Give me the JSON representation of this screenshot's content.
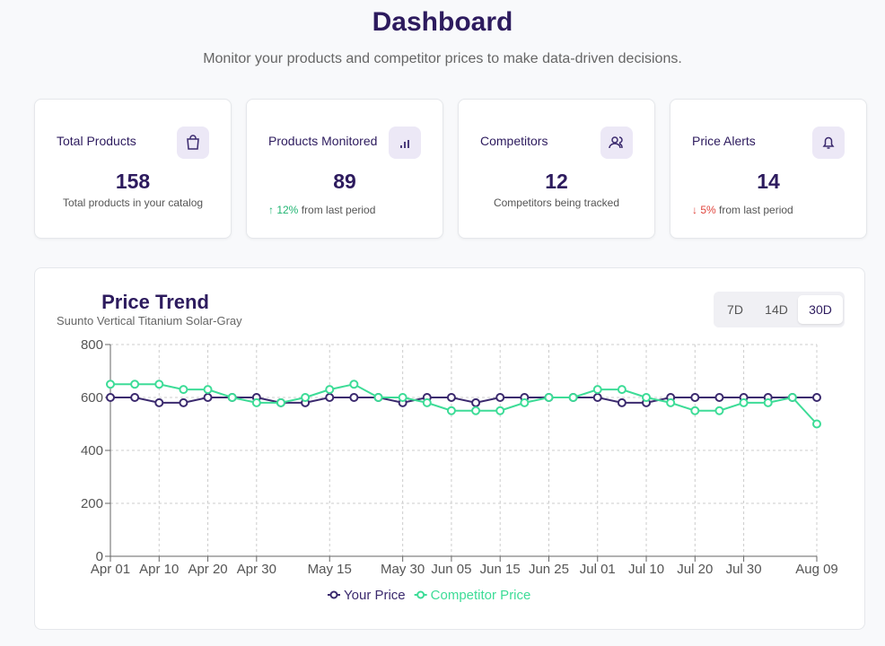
{
  "header": {
    "title": "Dashboard",
    "subtitle": "Monitor your products and competitor prices to make data-driven decisions."
  },
  "cards": [
    {
      "title": "Total Products",
      "value": 158,
      "note": "Total products in your catalog"
    },
    {
      "title": "Products Monitored",
      "value": 89,
      "change": "↑ 12%",
      "note": "from last period"
    },
    {
      "title": "Competitors",
      "value": 12,
      "note": "Competitors being tracked"
    },
    {
      "title": "Price Alerts",
      "value": 14,
      "change": "↓ 5%",
      "note": "from last period"
    }
  ],
  "range_buttons": [
    "7D",
    "14D",
    "30D"
  ],
  "active_button": 2,
  "chart_data": {
    "type": "line",
    "title": "Price Trend",
    "subtitle": "Suunto Vertical Titanium Solar-Gray",
    "categories": [
      "Apr 01",
      null,
      "Apr 10",
      null,
      "Apr 20",
      null,
      "Apr 30",
      null,
      null,
      "May 15",
      null,
      null,
      "May 30",
      null,
      "Jun 05",
      null,
      "Jun 15",
      null,
      "Jun 25",
      null,
      "Jul 01",
      null,
      "Jul 10",
      null,
      "Jul 20",
      null,
      "Jul 30",
      null,
      null,
      "Aug 09"
    ],
    "series": [
      {
        "name": "Your Price",
        "color": "#3b2a6e",
        "values": [
          600,
          600,
          580,
          580,
          600,
          600,
          600,
          580,
          580,
          600,
          600,
          600,
          580,
          600,
          600,
          580,
          600,
          600,
          600,
          600,
          600,
          580,
          580,
          600,
          600,
          600,
          600,
          600,
          600,
          600
        ]
      },
      {
        "name": "Competitor Price",
        "color": "#3ddc97",
        "values": [
          650,
          650,
          650,
          630,
          630,
          600,
          580,
          580,
          600,
          630,
          650,
          600,
          600,
          580,
          550,
          550,
          550,
          580,
          600,
          600,
          630,
          630,
          600,
          580,
          550,
          550,
          580,
          580,
          600,
          500
        ]
      }
    ],
    "ylim": [
      0,
      800
    ],
    "yticks": [
      0,
      200,
      400,
      600,
      800
    ],
    "grid": true,
    "legend": "bottom"
  }
}
